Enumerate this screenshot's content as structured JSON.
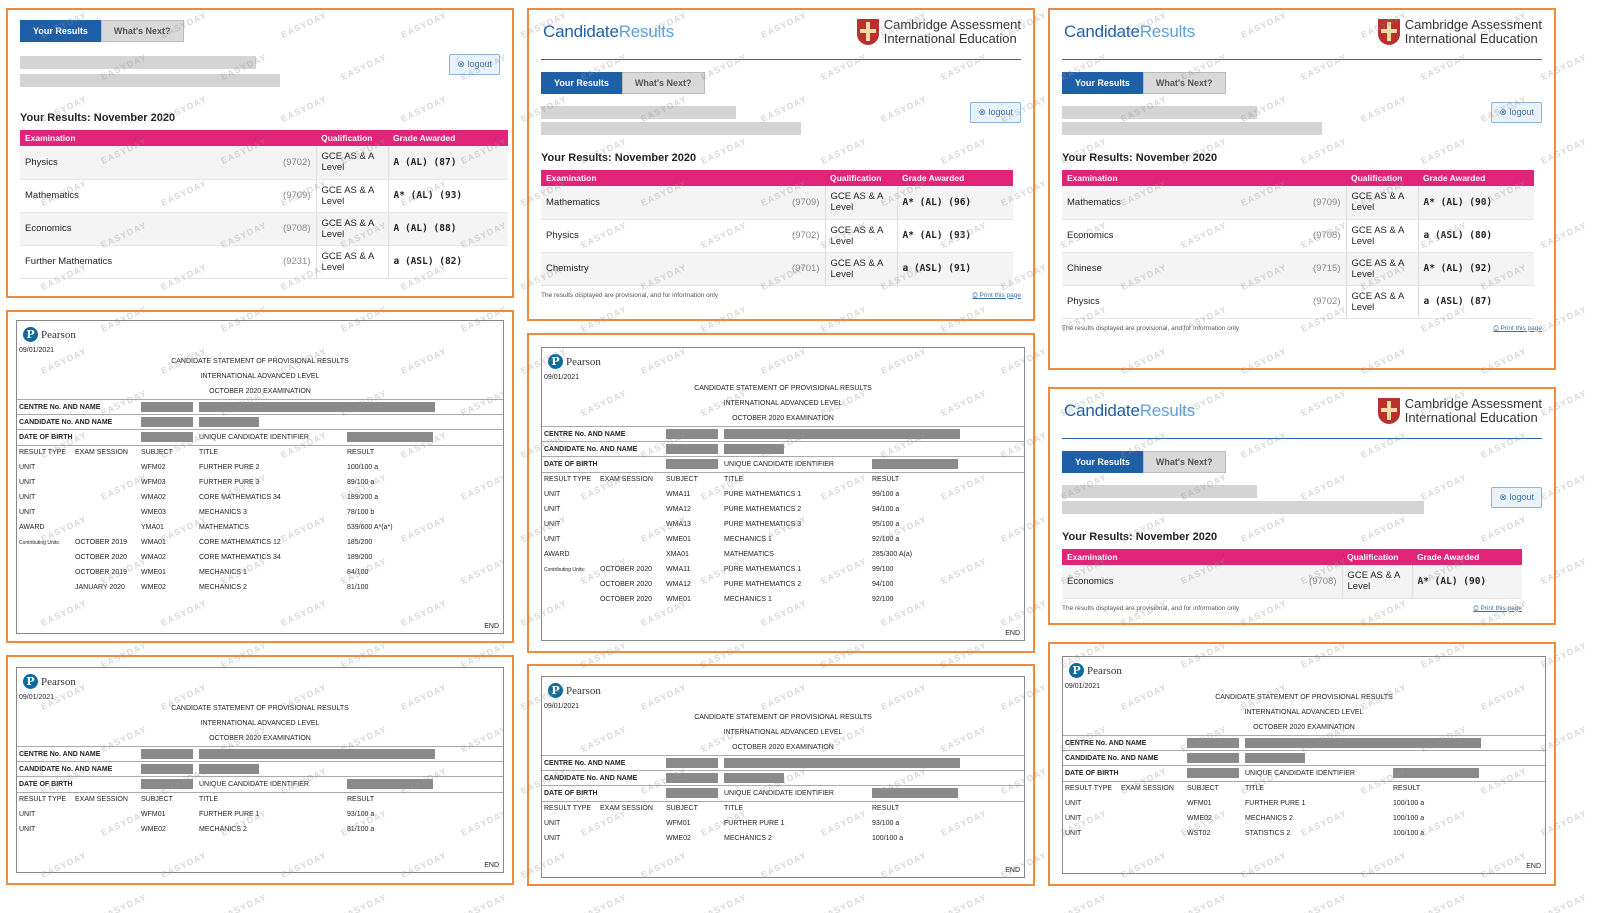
{
  "cambridge": {
    "brand_strong": "Candidate",
    "brand_light": "Results",
    "logo_line1": "Cambridge Assessment",
    "logo_line2": "International Education",
    "tab_results": "Your Results",
    "tab_next": "What's Next?",
    "logout": "logout",
    "results_title": "Your Results: November 2020",
    "col_exam": "Examination",
    "col_qual": "Qualification",
    "col_grade": "Grade Awarded",
    "footer_note": "The results displayed are provisional, and for information only",
    "print_link": "Print this page",
    "colors": {
      "accent": "#1f5fa8",
      "table_header": "#e2237a",
      "panel_border": "#f08a3c"
    }
  },
  "cam_panels": [
    {
      "rows": [
        {
          "exam": "Physics",
          "code": "(9702)",
          "qual": "GCE AS & A Level",
          "grade": "A (AL) (87)"
        },
        {
          "exam": "Mathematics",
          "code": "(9709)",
          "qual": "GCE AS & A Level",
          "grade": "A* (AL) (93)"
        },
        {
          "exam": "Economics",
          "code": "(9708)",
          "qual": "GCE AS & A Level",
          "grade": "A (AL) (88)"
        },
        {
          "exam": "Further Mathematics",
          "code": "(9231)",
          "qual": "GCE AS & A Level",
          "grade": "a (ASL) (82)"
        }
      ]
    },
    {
      "rows": [
        {
          "exam": "Mathematics",
          "code": "(9709)",
          "qual": "GCE AS & A Level",
          "grade": "A* (AL) (96)"
        },
        {
          "exam": "Physics",
          "code": "(9702)",
          "qual": "GCE AS & A Level",
          "grade": "A* (AL) (93)"
        },
        {
          "exam": "Chemistry",
          "code": "(9701)",
          "qual": "GCE AS & A Level",
          "grade": "a (ASL) (91)"
        }
      ]
    },
    {
      "rows": [
        {
          "exam": "Mathematics",
          "code": "(9709)",
          "qual": "GCE AS & A Level",
          "grade": "A* (AL) (90)"
        },
        {
          "exam": "Economics",
          "code": "(9708)",
          "qual": "GCE AS & A Level",
          "grade": "a (ASL) (80)"
        },
        {
          "exam": "Chinese",
          "code": "(9715)",
          "qual": "GCE AS & A Level",
          "grade": "A* (AL) (92)"
        },
        {
          "exam": "Physics",
          "code": "(9702)",
          "qual": "GCE AS & A Level",
          "grade": "a (ASL) (87)"
        }
      ]
    },
    {
      "rows": [
        {
          "exam": "Economics",
          "code": "(9708)",
          "qual": "GCE AS & A Level",
          "grade": "A* (AL) (90)"
        }
      ]
    }
  ],
  "pearson": {
    "logo": "Pearson",
    "date": "09/01/2021",
    "heading1": "CANDIDATE STATEMENT OF PROVISIONAL RESULTS",
    "heading2": "INTERNATIONAL ADVANCED LEVEL",
    "heading3": "OCTOBER 2020 EXAMINATION",
    "centre": "CENTRE No. AND NAME",
    "candidate": "CANDIDATE No. AND NAME",
    "dob": "DATE OF BIRTH",
    "uci": "UNIQUE CANDIDATE IDENTIFIER",
    "col_type": "RESULT TYPE",
    "col_session": "EXAM SESSION",
    "col_subject": "SUBJECT",
    "col_title": "TITLE",
    "col_result": "RESULT",
    "contrib": "Contributing Units:",
    "end": "END"
  },
  "pe_panels": [
    {
      "rows": [
        {
          "type": "UNIT",
          "session": "",
          "subject": "WFM02",
          "title": "FURTHER PURE 2",
          "result": "100/100 a"
        },
        {
          "type": "UNIT",
          "session": "",
          "subject": "WFM03",
          "title": "FURTHER PURE 3",
          "result": "89/100 a"
        },
        {
          "type": "UNIT",
          "session": "",
          "subject": "WMA02",
          "title": "CORE MATHEMATICS 34",
          "result": "189/200 a"
        },
        {
          "type": "UNIT",
          "session": "",
          "subject": "WME03",
          "title": "MECHANICS 3",
          "result": "78/100 b"
        },
        {
          "type": "AWARD",
          "session": "",
          "subject": "YMA01",
          "title": "MATHEMATICS",
          "result": "539/600 A*(a*)"
        },
        {
          "type": "",
          "session": "OCTOBER 2019",
          "subject": "WMA01",
          "title": "CORE MATHEMATICS 12",
          "result": "185/200",
          "contrib": true
        },
        {
          "type": "",
          "session": "OCTOBER 2020",
          "subject": "WMA02",
          "title": "CORE MATHEMATICS 34",
          "result": "189/200"
        },
        {
          "type": "",
          "session": "OCTOBER 2019",
          "subject": "WME01",
          "title": "MECHANICS 1",
          "result": "84/100"
        },
        {
          "type": "",
          "session": "JANUARY 2020",
          "subject": "WME02",
          "title": "MECHANICS 2",
          "result": "81/100"
        }
      ]
    },
    {
      "rows": [
        {
          "type": "UNIT",
          "session": "",
          "subject": "WMA11",
          "title": "PURE MATHEMATICS 1",
          "result": "99/100 a"
        },
        {
          "type": "UNIT",
          "session": "",
          "subject": "WMA12",
          "title": "PURE MATHEMATICS 2",
          "result": "94/100 a"
        },
        {
          "type": "UNIT",
          "session": "",
          "subject": "WMA13",
          "title": "PURE MATHEMATICS 3",
          "result": "95/100 a"
        },
        {
          "type": "UNIT",
          "session": "",
          "subject": "WME01",
          "title": "MECHANICS 1",
          "result": "92/100 a"
        },
        {
          "type": "AWARD",
          "session": "",
          "subject": "XMA01",
          "title": "MATHEMATICS",
          "result": "285/300 A(a)"
        },
        {
          "type": "",
          "session": "OCTOBER 2020",
          "subject": "WMA11",
          "title": "PURE MATHEMATICS 1",
          "result": "99/100",
          "contrib": true
        },
        {
          "type": "",
          "session": "OCTOBER 2020",
          "subject": "WMA12",
          "title": "PURE MATHEMATICS 2",
          "result": "94/100"
        },
        {
          "type": "",
          "session": "OCTOBER 2020",
          "subject": "WME01",
          "title": "MECHANICS 1",
          "result": "92/100"
        }
      ]
    },
    {
      "rows": [
        {
          "type": "UNIT",
          "session": "",
          "subject": "WFM01",
          "title": "FURTHER PURE 1",
          "result": "93/100 a"
        },
        {
          "type": "UNIT",
          "session": "",
          "subject": "WME02",
          "title": "MECHANICS 2",
          "result": "81/100 a"
        }
      ]
    },
    {
      "rows": [
        {
          "type": "UNIT",
          "session": "",
          "subject": "WFM01",
          "title": "FURTHER PURE 1",
          "result": "93/100 a"
        },
        {
          "type": "UNIT",
          "session": "",
          "subject": "WME02",
          "title": "MECHANICS 2",
          "result": "100/100 a"
        }
      ]
    },
    {
      "rows": [
        {
          "type": "UNIT",
          "session": "",
          "subject": "WFM01",
          "title": "FURTHER PURE 1",
          "result": "100/100 a"
        },
        {
          "type": "UNIT",
          "session": "",
          "subject": "WME02",
          "title": "MECHANICS 2",
          "result": "100/100 a"
        },
        {
          "type": "UNIT",
          "session": "",
          "subject": "WST02",
          "title": "STATISTICS 2",
          "result": "100/100 a"
        }
      ]
    }
  ],
  "watermark": "EASYDAY"
}
